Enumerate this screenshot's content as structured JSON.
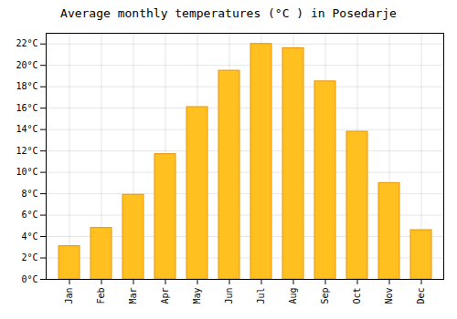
{
  "chart_data": {
    "type": "bar",
    "title": "Average monthly temperatures (°C ) in Posedarje",
    "categories": [
      "Jan",
      "Feb",
      "Mar",
      "Apr",
      "May",
      "Jun",
      "Jul",
      "Aug",
      "Sep",
      "Oct",
      "Nov",
      "Dec"
    ],
    "values": [
      3.1,
      4.8,
      7.9,
      11.7,
      16.1,
      19.5,
      22.0,
      21.6,
      18.5,
      13.8,
      9.0,
      4.6
    ],
    "color": "#FFC020",
    "ylim": [
      0,
      23
    ],
    "yticks": [
      {
        "value": 0,
        "label": "0°C"
      },
      {
        "value": 2,
        "label": "2°C"
      },
      {
        "value": 4,
        "label": "4°C"
      },
      {
        "value": 6,
        "label": "6°C"
      },
      {
        "value": 8,
        "label": "8°C"
      },
      {
        "value": 10,
        "label": "10°C"
      },
      {
        "value": 12,
        "label": "12°C"
      },
      {
        "value": 14,
        "label": "14°C"
      },
      {
        "value": 16,
        "label": "16°C"
      },
      {
        "value": 18,
        "label": "18°C"
      },
      {
        "value": 20,
        "label": "20°C"
      },
      {
        "value": 22,
        "label": "22°C"
      }
    ],
    "grid": true
  }
}
